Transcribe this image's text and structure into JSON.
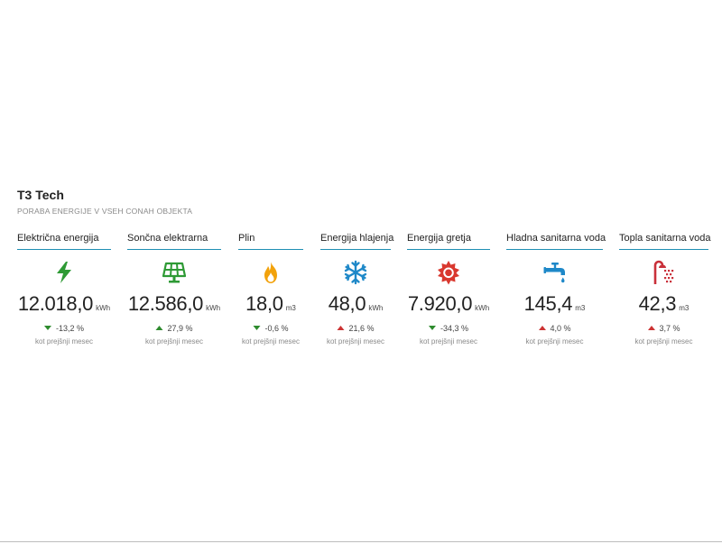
{
  "header": {
    "title": "T3 Tech",
    "subtitle": "PORABA ENERGIJE V VSEH CONAH OBJEKTA"
  },
  "compare_label": "kot prejšnji mesec",
  "colors": {
    "accent_line": "#1f8fb3",
    "trend_down": "#2e8b2e",
    "trend_up": "#cc3333"
  },
  "cards": [
    {
      "label": "Električna energija",
      "icon": "lightning-icon",
      "color": "#2e9a35",
      "value": "12.018,0",
      "unit": "kWh",
      "trend": "down",
      "change": "-13,2 %"
    },
    {
      "label": "Sončna elektrarna",
      "icon": "solar-panel-icon",
      "color": "#2e9a35",
      "value": "12.586,0",
      "unit": "kWh",
      "trend": "up",
      "change": "27,9 %"
    },
    {
      "label": "Plin",
      "icon": "flame-icon",
      "color": "#f2a20c",
      "value": "18,0",
      "unit": "m3",
      "trend": "down",
      "change": "-0,6 %"
    },
    {
      "label": "Energija hlajenja",
      "icon": "snowflake-icon",
      "color": "#1e88c8",
      "value": "48,0",
      "unit": "kWh",
      "trend": "up",
      "change": "21,6 %"
    },
    {
      "label": "Energija gretja",
      "icon": "sun-icon",
      "color": "#d9382f",
      "value": "7.920,0",
      "unit": "kWh",
      "trend": "down",
      "change": "-34,3 %"
    },
    {
      "label": "Hladna sanitarna voda",
      "icon": "faucet-icon",
      "color": "#1e88c8",
      "value": "145,4",
      "unit": "m3",
      "trend": "up",
      "change": "4,0 %"
    },
    {
      "label": "Topla sanitarna voda",
      "icon": "shower-icon",
      "color": "#c9303a",
      "value": "42,3",
      "unit": "m3",
      "trend": "up",
      "change": "3,7 %"
    }
  ]
}
